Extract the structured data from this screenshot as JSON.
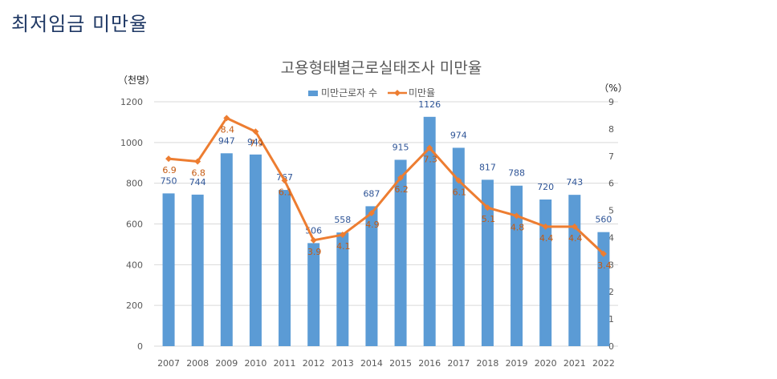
{
  "page": {
    "title": "최저임금 미만율"
  },
  "chart_data": {
    "type": "bar+line",
    "title": "고용형태별근로실태조사  미만율",
    "y_left_unit": "（천명）",
    "y_right_unit": "（%）",
    "categories": [
      "2007",
      "2008",
      "2009",
      "2010",
      "2011",
      "2012",
      "2013",
      "2014",
      "2015",
      "2016",
      "2017",
      "2018",
      "2019",
      "2020",
      "2021",
      "2022"
    ],
    "series": [
      {
        "name": "미만근로자 수",
        "type": "bar",
        "axis": "left",
        "values": [
          750,
          744,
          947,
          941,
          767,
          506,
          558,
          687,
          915,
          1126,
          974,
          817,
          788,
          720,
          743,
          560
        ]
      },
      {
        "name": "미만율",
        "type": "line",
        "axis": "right",
        "values": [
          6.9,
          6.8,
          8.4,
          7.9,
          6.1,
          3.9,
          4.1,
          4.9,
          6.2,
          7.3,
          6.1,
          5.1,
          4.8,
          4.4,
          4.4,
          3.4
        ]
      }
    ],
    "y_left": {
      "min": 0,
      "max": 1200,
      "ticks": [
        "0",
        "200",
        "400",
        "600",
        "800",
        "1000",
        "1200"
      ]
    },
    "y_right": {
      "min": 0,
      "max": 9,
      "ticks": [
        "0",
        "1",
        "2",
        "3",
        "4",
        "5",
        "6",
        "7",
        "8",
        "9"
      ]
    },
    "colors": {
      "bar": "#5b9bd5",
      "line": "#ed7d31",
      "bar_label": "#2f5597",
      "line_label": "#c55a11",
      "grid": "#d9d9d9",
      "axis_text": "#595959",
      "title": "#595959",
      "page_title": "#1f3864"
    },
    "legend": "top"
  }
}
